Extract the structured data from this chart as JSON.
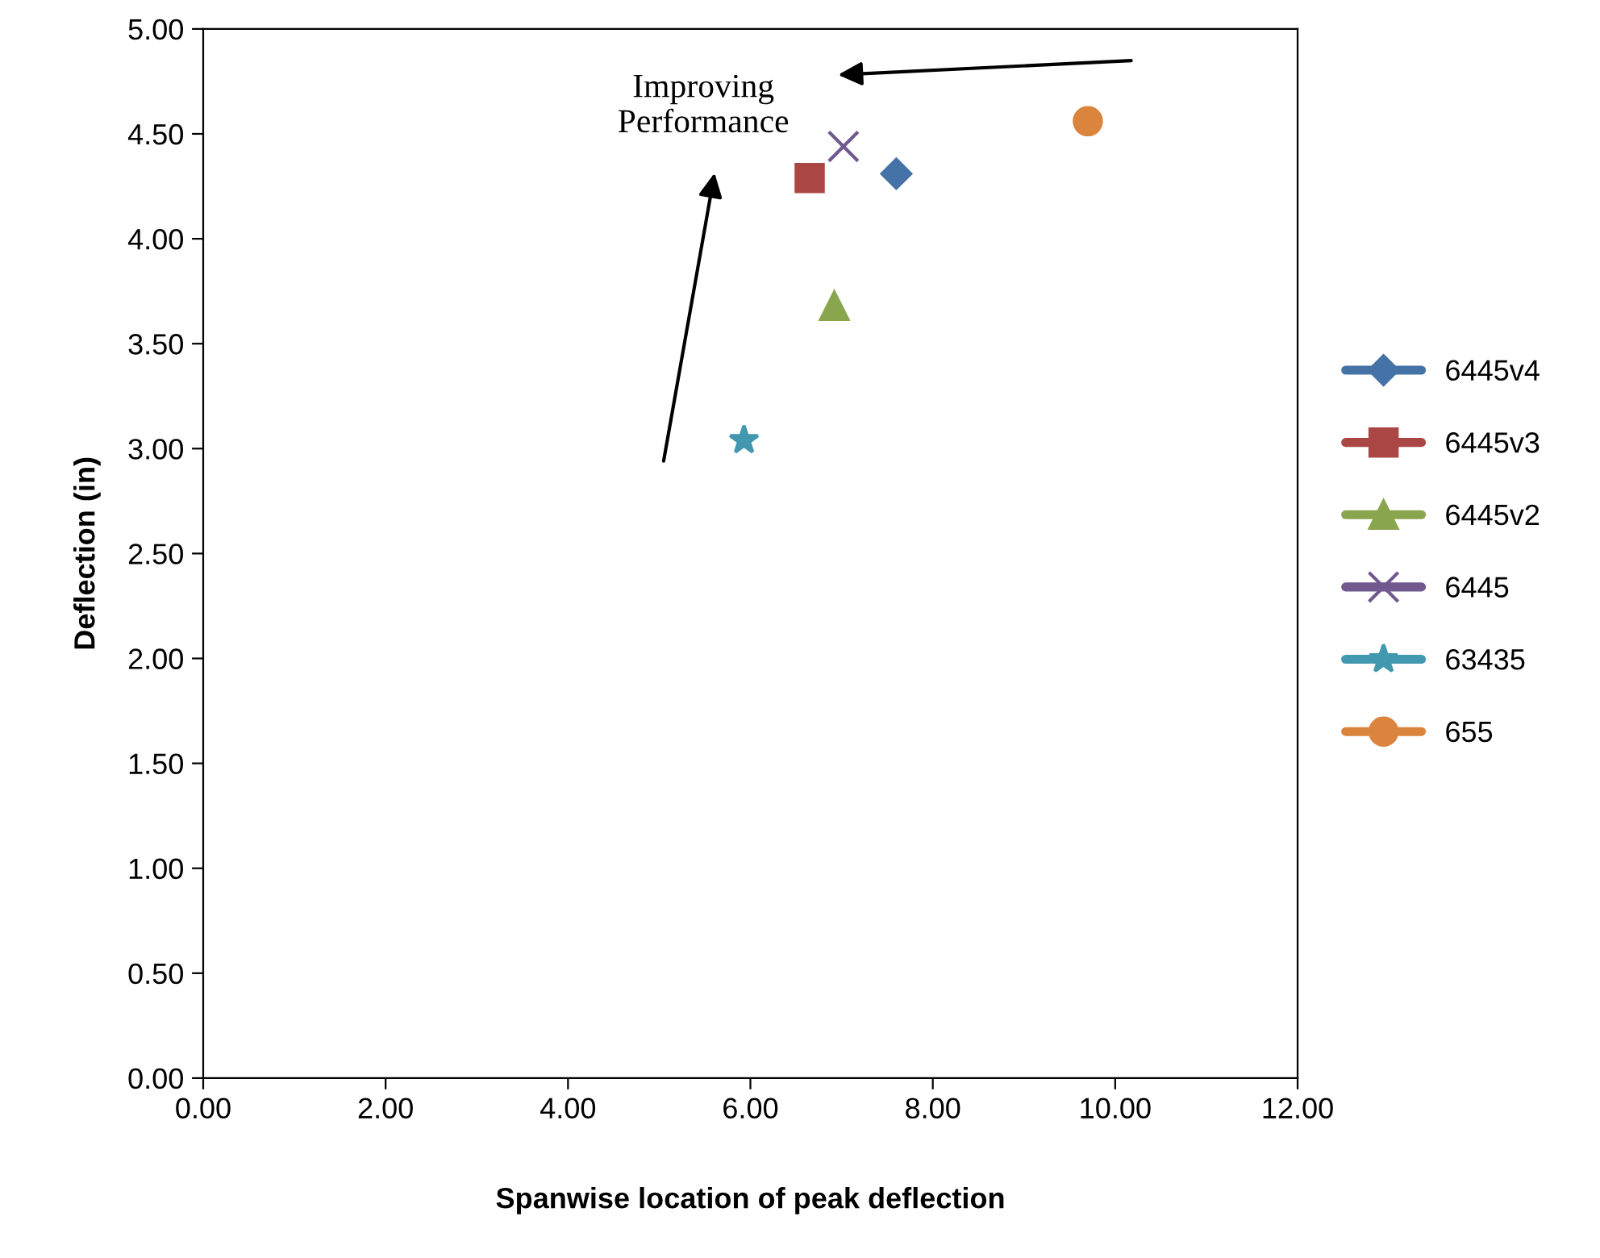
{
  "chart_data": {
    "type": "line",
    "xlabel": "Spanwise location of peak deflection",
    "ylabel": "Deflection (in)",
    "annotations": [
      "Improving\nPerformance"
    ],
    "xlim": [
      0,
      12
    ],
    "xticks": [
      {
        "value": 0,
        "label": "0.00"
      },
      {
        "value": 2,
        "label": "2.00"
      },
      {
        "value": 4,
        "label": "4.00"
      },
      {
        "value": 6,
        "label": "6.00"
      },
      {
        "value": 8,
        "label": "8.00"
      },
      {
        "value": 10,
        "label": "10.00"
      },
      {
        "value": 12,
        "label": "12.00"
      }
    ],
    "ylim": [
      0,
      5
    ],
    "yticks": [
      {
        "value": 0,
        "label": "0.00"
      },
      {
        "value": 0.5,
        "label": "0.50"
      },
      {
        "value": 1,
        "label": "1.00"
      },
      {
        "value": 1.5,
        "label": "1.50"
      },
      {
        "value": 2,
        "label": "2.00"
      },
      {
        "value": 2.5,
        "label": "2.50"
      },
      {
        "value": 3,
        "label": "3.00"
      },
      {
        "value": 3.5,
        "label": "3.50"
      },
      {
        "value": 4,
        "label": "4.00"
      },
      {
        "value": 4.5,
        "label": "4.50"
      },
      {
        "value": 5,
        "label": "5.00"
      }
    ],
    "grid": false,
    "legend": "right",
    "series": [
      {
        "name": "6445v4",
        "color": "#4572a7",
        "marker": "diamond",
        "x": [
          7.6
        ],
        "values": [
          4.31
        ]
      },
      {
        "name": "6445v3",
        "color": "#aa4643",
        "marker": "square",
        "x": [
          6.65
        ],
        "values": [
          4.29
        ]
      },
      {
        "name": "6445v2",
        "color": "#89a54e",
        "marker": "triangle",
        "x": [
          6.92
        ],
        "values": [
          3.68
        ]
      },
      {
        "name": "6445",
        "color": "#71588f",
        "marker": "cross",
        "x": [
          7.02
        ],
        "values": [
          4.44
        ]
      },
      {
        "name": "63435",
        "color": "#4198af",
        "marker": "star",
        "x": [
          5.93
        ],
        "values": [
          3.04
        ]
      },
      {
        "name": "655",
        "color": "#db843d",
        "marker": "circle",
        "x": [
          9.7
        ],
        "values": [
          4.56
        ]
      }
    ]
  }
}
